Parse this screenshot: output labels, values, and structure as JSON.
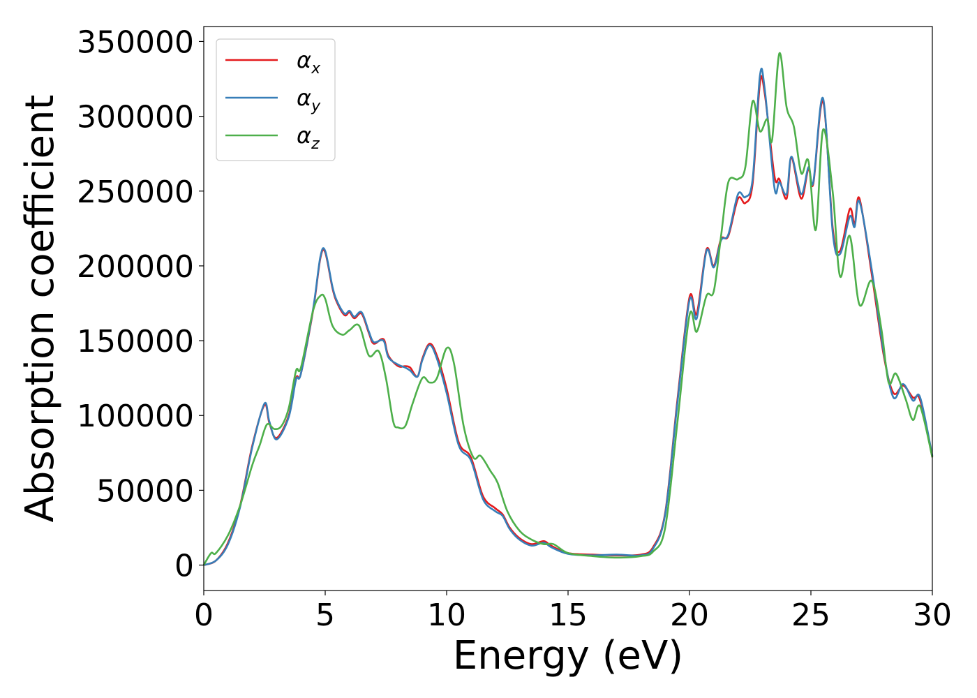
{
  "chart_data": {
    "type": "line",
    "title": "",
    "xlabel": "Energy (eV)",
    "ylabel": "Absorption coefficient",
    "xlim": [
      0,
      30
    ],
    "ylim": [
      -17000,
      360000
    ],
    "x_ticks": [
      0,
      5,
      10,
      15,
      20,
      25,
      30
    ],
    "x_tick_labels": [
      "0",
      "5",
      "10",
      "15",
      "20",
      "25",
      "30"
    ],
    "y_ticks": [
      0,
      50000,
      100000,
      150000,
      200000,
      250000,
      300000,
      350000
    ],
    "y_tick_labels": [
      "0",
      "50000",
      "100000",
      "150000",
      "200000",
      "250000",
      "300000",
      "350000"
    ],
    "grid": false,
    "legend_position": "top-left",
    "series": [
      {
        "name": "αx",
        "symbol": "α",
        "subscript": "x",
        "color": "#e41a1c",
        "points": [
          [
            0,
            0
          ],
          [
            0.5,
            3000
          ],
          [
            1,
            15000
          ],
          [
            1.5,
            40000
          ],
          [
            2,
            80000
          ],
          [
            2.5,
            107000
          ],
          [
            2.7,
            95000
          ],
          [
            3,
            85000
          ],
          [
            3.5,
            100000
          ],
          [
            3.8,
            125000
          ],
          [
            4,
            128000
          ],
          [
            4.5,
            170000
          ],
          [
            4.8,
            205000
          ],
          [
            5,
            209000
          ],
          [
            5.3,
            185000
          ],
          [
            5.5,
            175000
          ],
          [
            5.8,
            167000
          ],
          [
            6,
            169000
          ],
          [
            6.2,
            165000
          ],
          [
            6.5,
            168000
          ],
          [
            6.8,
            155000
          ],
          [
            7,
            148000
          ],
          [
            7.4,
            151000
          ],
          [
            7.6,
            140000
          ],
          [
            8,
            133000
          ],
          [
            8.3,
            133000
          ],
          [
            8.5,
            132000
          ],
          [
            8.8,
            126000
          ],
          [
            9,
            138000
          ],
          [
            9.3,
            148000
          ],
          [
            9.6,
            140000
          ],
          [
            10,
            118000
          ],
          [
            10.5,
            82000
          ],
          [
            11,
            72000
          ],
          [
            11.5,
            46000
          ],
          [
            12,
            38000
          ],
          [
            12.3,
            34000
          ],
          [
            12.6,
            25000
          ],
          [
            13,
            18000
          ],
          [
            13.5,
            14000
          ],
          [
            14,
            16000
          ],
          [
            14.3,
            13000
          ],
          [
            15,
            8000
          ],
          [
            16,
            7000
          ],
          [
            17,
            6500
          ],
          [
            18,
            7000
          ],
          [
            18.5,
            12000
          ],
          [
            19,
            35000
          ],
          [
            19.5,
            110000
          ],
          [
            20,
            179000
          ],
          [
            20.3,
            168000
          ],
          [
            20.7,
            211000
          ],
          [
            21,
            200000
          ],
          [
            21.3,
            218000
          ],
          [
            21.6,
            220000
          ],
          [
            22,
            245000
          ],
          [
            22.3,
            242000
          ],
          [
            22.6,
            255000
          ],
          [
            22.9,
            322000
          ],
          [
            23.1,
            315000
          ],
          [
            23.5,
            260000
          ],
          [
            23.7,
            258000
          ],
          [
            24,
            245000
          ],
          [
            24.2,
            272000
          ],
          [
            24.6,
            245000
          ],
          [
            24.9,
            265000
          ],
          [
            25.1,
            255000
          ],
          [
            25.5,
            310000
          ],
          [
            25.9,
            225000
          ],
          [
            26.2,
            210000
          ],
          [
            26.6,
            238000
          ],
          [
            26.8,
            228000
          ],
          [
            27,
            245000
          ],
          [
            27.5,
            195000
          ],
          [
            28,
            140000
          ],
          [
            28.4,
            115000
          ],
          [
            28.8,
            120000
          ],
          [
            29.2,
            112000
          ],
          [
            29.5,
            110000
          ],
          [
            30,
            72000
          ]
        ]
      },
      {
        "name": "αy",
        "symbol": "α",
        "subscript": "y",
        "color": "#377eb8",
        "points": [
          [
            0,
            0
          ],
          [
            0.5,
            3000
          ],
          [
            1,
            14000
          ],
          [
            1.5,
            39000
          ],
          [
            2,
            79000
          ],
          [
            2.5,
            108000
          ],
          [
            2.7,
            96000
          ],
          [
            3,
            84000
          ],
          [
            3.5,
            99000
          ],
          [
            3.8,
            124000
          ],
          [
            4,
            128000
          ],
          [
            4.5,
            171000
          ],
          [
            4.8,
            206000
          ],
          [
            5,
            210000
          ],
          [
            5.3,
            186000
          ],
          [
            5.5,
            176000
          ],
          [
            5.8,
            168000
          ],
          [
            6,
            170000
          ],
          [
            6.2,
            166000
          ],
          [
            6.5,
            169000
          ],
          [
            6.8,
            156000
          ],
          [
            7,
            149000
          ],
          [
            7.4,
            150000
          ],
          [
            7.6,
            139000
          ],
          [
            8,
            134000
          ],
          [
            8.3,
            132000
          ],
          [
            8.5,
            130000
          ],
          [
            8.8,
            126000
          ],
          [
            9,
            137000
          ],
          [
            9.3,
            147000
          ],
          [
            9.6,
            138000
          ],
          [
            10,
            115000
          ],
          [
            10.5,
            80000
          ],
          [
            11,
            70000
          ],
          [
            11.5,
            44000
          ],
          [
            12,
            36000
          ],
          [
            12.3,
            33000
          ],
          [
            12.6,
            24000
          ],
          [
            13,
            17000
          ],
          [
            13.5,
            13000
          ],
          [
            14,
            15000
          ],
          [
            14.3,
            12000
          ],
          [
            15,
            7500
          ],
          [
            16,
            6500
          ],
          [
            17,
            7000
          ],
          [
            18,
            6500
          ],
          [
            18.5,
            11000
          ],
          [
            19,
            34000
          ],
          [
            19.5,
            108000
          ],
          [
            20,
            177000
          ],
          [
            20.3,
            165000
          ],
          [
            20.7,
            210000
          ],
          [
            21,
            199000
          ],
          [
            21.3,
            217000
          ],
          [
            21.6,
            221000
          ],
          [
            22,
            248000
          ],
          [
            22.3,
            246000
          ],
          [
            22.6,
            258000
          ],
          [
            22.9,
            327000
          ],
          [
            23.1,
            318000
          ],
          [
            23.5,
            252000
          ],
          [
            23.7,
            256000
          ],
          [
            24,
            248000
          ],
          [
            24.2,
            273000
          ],
          [
            24.6,
            248000
          ],
          [
            24.9,
            266000
          ],
          [
            25.1,
            256000
          ],
          [
            25.5,
            312000
          ],
          [
            25.9,
            222000
          ],
          [
            26.2,
            208000
          ],
          [
            26.6,
            233000
          ],
          [
            26.8,
            226000
          ],
          [
            27,
            243000
          ],
          [
            27.5,
            198000
          ],
          [
            28,
            142000
          ],
          [
            28.4,
            112000
          ],
          [
            28.8,
            121000
          ],
          [
            29.2,
            110000
          ],
          [
            29.5,
            112000
          ],
          [
            30,
            73000
          ]
        ]
      },
      {
        "name": "αz",
        "symbol": "α",
        "subscript": "z",
        "color": "#4daf4a",
        "points": [
          [
            0,
            0
          ],
          [
            0.3,
            8000
          ],
          [
            0.5,
            8000
          ],
          [
            1,
            20000
          ],
          [
            1.5,
            40000
          ],
          [
            2,
            67000
          ],
          [
            2.3,
            80000
          ],
          [
            2.6,
            94000
          ],
          [
            2.9,
            91000
          ],
          [
            3.2,
            93000
          ],
          [
            3.5,
            105000
          ],
          [
            3.8,
            130000
          ],
          [
            4,
            132000
          ],
          [
            4.5,
            170000
          ],
          [
            4.8,
            180000
          ],
          [
            5,
            178000
          ],
          [
            5.3,
            160000
          ],
          [
            5.7,
            154000
          ],
          [
            6,
            157000
          ],
          [
            6.4,
            160000
          ],
          [
            6.8,
            140000
          ],
          [
            7.2,
            143000
          ],
          [
            7.5,
            125000
          ],
          [
            7.8,
            96000
          ],
          [
            8,
            92000
          ],
          [
            8.3,
            93000
          ],
          [
            8.6,
            108000
          ],
          [
            9,
            125000
          ],
          [
            9.3,
            122000
          ],
          [
            9.6,
            125000
          ],
          [
            10,
            145000
          ],
          [
            10.3,
            135000
          ],
          [
            10.7,
            93000
          ],
          [
            11.1,
            72000
          ],
          [
            11.4,
            73000
          ],
          [
            11.8,
            63000
          ],
          [
            12.1,
            55000
          ],
          [
            12.5,
            36000
          ],
          [
            13,
            23000
          ],
          [
            13.5,
            17000
          ],
          [
            14,
            14000
          ],
          [
            14.4,
            14000
          ],
          [
            15,
            8000
          ],
          [
            16,
            6000
          ],
          [
            17,
            5000
          ],
          [
            18,
            6000
          ],
          [
            18.5,
            9000
          ],
          [
            19,
            25000
          ],
          [
            19.5,
            95000
          ],
          [
            20,
            167000
          ],
          [
            20.3,
            156000
          ],
          [
            20.7,
            180000
          ],
          [
            21,
            183000
          ],
          [
            21.3,
            220000
          ],
          [
            21.6,
            256000
          ],
          [
            22,
            258000
          ],
          [
            22.3,
            266000
          ],
          [
            22.6,
            310000
          ],
          [
            22.9,
            290000
          ],
          [
            23.2,
            298000
          ],
          [
            23.4,
            284000
          ],
          [
            23.7,
            342000
          ],
          [
            24,
            306000
          ],
          [
            24.3,
            293000
          ],
          [
            24.6,
            262000
          ],
          [
            24.9,
            270000
          ],
          [
            25.2,
            224000
          ],
          [
            25.5,
            291000
          ],
          [
            25.9,
            249000
          ],
          [
            26.2,
            193000
          ],
          [
            26.6,
            220000
          ],
          [
            27,
            174000
          ],
          [
            27.5,
            190000
          ],
          [
            27.9,
            158000
          ],
          [
            28.2,
            122000
          ],
          [
            28.5,
            128000
          ],
          [
            28.9,
            111000
          ],
          [
            29.2,
            97000
          ],
          [
            29.5,
            106000
          ],
          [
            30,
            72000
          ]
        ]
      }
    ]
  }
}
